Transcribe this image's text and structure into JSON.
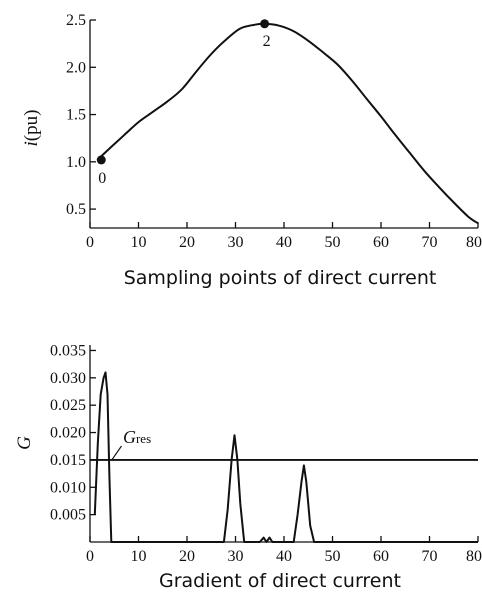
{
  "chart_data": [
    {
      "type": "line",
      "title": "",
      "xlabel": "Sampling points of direct current",
      "ylabel": "i(pu)",
      "ylabel_italic_part": "i",
      "ylabel_rest": "(pu)",
      "xlim": [
        0,
        80
      ],
      "ylim": [
        0.3,
        2.5
      ],
      "xticks": [
        0,
        10,
        20,
        30,
        40,
        50,
        60,
        70,
        80
      ],
      "xtick_labels": [
        "0",
        "10",
        "20",
        "30",
        "40",
        "50",
        "60",
        "70",
        "80"
      ],
      "yticks": [
        0.5,
        1.0,
        1.5,
        2.0,
        2.5
      ],
      "ytick_labels": [
        "0.5",
        "1.0",
        "1.5",
        "2.0",
        "2.5"
      ],
      "grid": false,
      "series": [
        {
          "x": [
            1.5,
            4,
            7,
            10,
            13,
            16,
            19,
            22,
            25,
            28,
            31,
            34,
            36,
            39,
            42,
            45,
            48,
            51,
            54,
            57,
            60,
            63,
            66,
            69,
            72,
            75,
            78,
            80
          ],
          "y": [
            1.02,
            1.14,
            1.28,
            1.42,
            1.53,
            1.64,
            1.77,
            1.96,
            2.14,
            2.29,
            2.41,
            2.45,
            2.46,
            2.44,
            2.38,
            2.28,
            2.16,
            2.03,
            1.86,
            1.67,
            1.48,
            1.28,
            1.09,
            0.9,
            0.73,
            0.57,
            0.42,
            0.35
          ]
        }
      ],
      "markers": [
        {
          "label": "0",
          "x": 1.5,
          "y": 1.02
        },
        {
          "label": "2",
          "x": 36,
          "y": 2.46
        }
      ]
    },
    {
      "type": "line",
      "title": "",
      "xlabel": "Gradient of direct current",
      "ylabel": "G",
      "xlim": [
        0,
        80
      ],
      "ylim": [
        0,
        0.036
      ],
      "xticks": [
        0,
        10,
        20,
        30,
        40,
        50,
        60,
        70,
        80
      ],
      "xtick_labels": [
        "0",
        "10",
        "20",
        "30",
        "40",
        "50",
        "60",
        "70",
        "80"
      ],
      "yticks": [
        0.005,
        0.01,
        0.015,
        0.02,
        0.025,
        0.03,
        0.035
      ],
      "ytick_labels": [
        "0.005",
        "0.010",
        "0.015",
        "0.020",
        "0.025",
        "0.030",
        "0.035"
      ],
      "grid": false,
      "series": [
        {
          "x": [
            1,
            1.6,
            2.2,
            2.8,
            3.2,
            3.6,
            4.0,
            4.4,
            5,
            27.6,
            28.4,
            29.2,
            29.8,
            30.4,
            31.0,
            31.8,
            32.4,
            35.0,
            35.8,
            36.4,
            37.0,
            37.6,
            38.2,
            42.0,
            42.8,
            43.6,
            44.1,
            44.6,
            45.4,
            46.2,
            80
          ],
          "y": [
            0.005,
            0.018,
            0.027,
            0.03,
            0.031,
            0.027,
            0.012,
            0.0,
            0.0,
            0.0,
            0.006,
            0.015,
            0.0195,
            0.015,
            0.007,
            0.0,
            0.0,
            0.0,
            0.0008,
            0.0,
            0.0008,
            0.0,
            0.0,
            0.0,
            0.005,
            0.011,
            0.014,
            0.011,
            0.003,
            0.0,
            0.0
          ]
        }
      ],
      "threshold": {
        "label_main": "G",
        "label_sub": "res",
        "y": 0.015
      }
    }
  ]
}
